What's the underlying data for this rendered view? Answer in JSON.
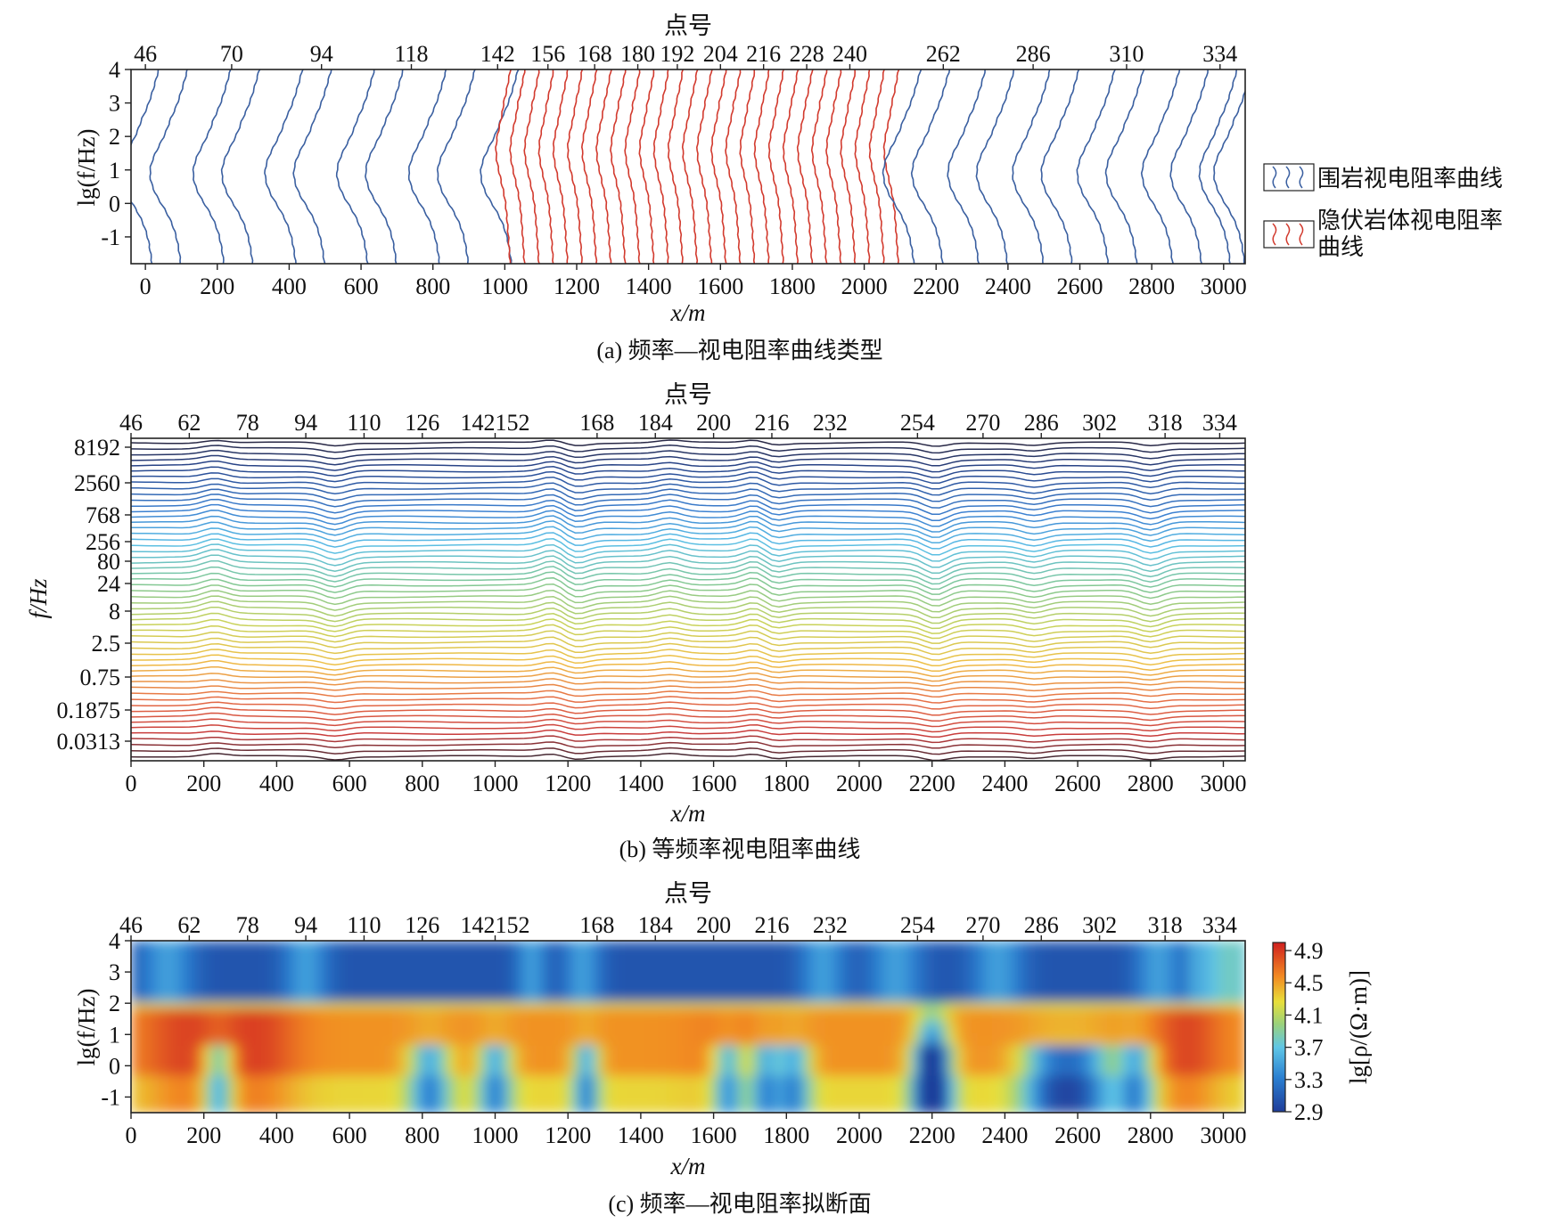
{
  "chart_data": [
    {
      "id": "a",
      "type": "line",
      "caption": "(a) 频率—视电阻率曲线类型",
      "top_axis_title": "点号",
      "top_ticks": [
        {
          "label": "46",
          "x": 0
        },
        {
          "label": "70",
          "x": 240
        },
        {
          "label": "94",
          "x": 490
        },
        {
          "label": "118",
          "x": 740
        },
        {
          "label": "142",
          "x": 980
        },
        {
          "label": "156",
          "x": 1120
        },
        {
          "label": "168",
          "x": 1250
        },
        {
          "label": "180",
          "x": 1370
        },
        {
          "label": "192",
          "x": 1480
        },
        {
          "label": "204",
          "x": 1600
        },
        {
          "label": "216",
          "x": 1720
        },
        {
          "label": "228",
          "x": 1840
        },
        {
          "label": "240",
          "x": 1960
        },
        {
          "label": "262",
          "x": 2220
        },
        {
          "label": "286",
          "x": 2470
        },
        {
          "label": "310",
          "x": 2730
        },
        {
          "label": "334",
          "x": 2990
        }
      ],
      "xlabel": "x/m",
      "ylabel": "lg(f/Hz)",
      "xlim": [
        -40,
        3060
      ],
      "ylim": [
        -1.8,
        4
      ],
      "xticks": [
        0,
        200,
        400,
        600,
        800,
        1000,
        1200,
        1400,
        1600,
        1800,
        2000,
        2200,
        2400,
        2600,
        2800,
        3000
      ],
      "yticks": [
        -1,
        0,
        1,
        2,
        3,
        4
      ],
      "series": [
        {
          "name": "围岩视电阻率曲线",
          "color": "#3a5fa0",
          "stations_x": [
            0,
            80,
            200,
            280,
            400,
            480,
            600,
            680,
            800,
            880,
            1000
          ]
        },
        {
          "name": "隐伏岩体视电阻率曲线",
          "color": "#d23a2e",
          "stations_x": [
            1000,
            1040,
            1080,
            1120,
            1160,
            1200,
            1240,
            1280,
            1320,
            1360,
            1400,
            1440,
            1480,
            1520,
            1560,
            1600,
            1640,
            1680,
            1720,
            1760,
            1800,
            1840,
            1880,
            1920,
            1960,
            2000,
            2040,
            2080
          ]
        },
        {
          "name": "围岩视电阻率曲线",
          "color": "#3a5fa0",
          "stations_x": [
            2120,
            2200,
            2300,
            2380,
            2480,
            2560,
            2660,
            2740,
            2840,
            2920,
            3000,
            3040
          ]
        }
      ],
      "legend": [
        {
          "label": "围岩视电阻率曲线",
          "color": "#3a5fa0"
        },
        {
          "label": "隐伏岩体视电阻率曲线",
          "color": "#d23a2e"
        }
      ]
    },
    {
      "id": "b",
      "type": "line",
      "caption": "(b) 等频率视电阻率曲线",
      "top_axis_title": "点号",
      "top_ticks": [
        {
          "label": "46",
          "x": 0
        },
        {
          "label": "62",
          "x": 160
        },
        {
          "label": "78",
          "x": 320
        },
        {
          "label": "94",
          "x": 480
        },
        {
          "label": "110",
          "x": 640
        },
        {
          "label": "126",
          "x": 800
        },
        {
          "label": "142152",
          "x": 1000
        },
        {
          "label": "168",
          "x": 1280
        },
        {
          "label": "184",
          "x": 1440
        },
        {
          "label": "200",
          "x": 1600
        },
        {
          "label": "216",
          "x": 1760
        },
        {
          "label": "232",
          "x": 1920
        },
        {
          "label": "254",
          "x": 2160
        },
        {
          "label": "270",
          "x": 2340
        },
        {
          "label": "286",
          "x": 2500
        },
        {
          "label": "302",
          "x": 2660
        },
        {
          "label": "318",
          "x": 2840
        },
        {
          "label": "334",
          "x": 2990
        }
      ],
      "xlabel": "x/m",
      "ylabel": "f/Hz",
      "xlim": [
        0,
        3060
      ],
      "xticks": [
        0,
        200,
        400,
        600,
        800,
        1000,
        1200,
        1400,
        1600,
        1800,
        2000,
        2200,
        2400,
        2600,
        2800,
        3000
      ],
      "yticks": [
        "8192",
        "2560",
        "768",
        "256",
        "80",
        "24",
        "8",
        "2.5",
        "0.75",
        "0.1875",
        "0.0313"
      ],
      "n_frequency_curves": 56
    },
    {
      "id": "c",
      "type": "heatmap",
      "caption": "(c) 频率—视电阻率拟断面",
      "top_axis_title": "点号",
      "top_ticks": [
        {
          "label": "46",
          "x": 0
        },
        {
          "label": "62",
          "x": 160
        },
        {
          "label": "78",
          "x": 320
        },
        {
          "label": "94",
          "x": 480
        },
        {
          "label": "110",
          "x": 640
        },
        {
          "label": "126",
          "x": 800
        },
        {
          "label": "142152",
          "x": 1000
        },
        {
          "label": "168",
          "x": 1280
        },
        {
          "label": "184",
          "x": 1440
        },
        {
          "label": "200",
          "x": 1600
        },
        {
          "label": "216",
          "x": 1760
        },
        {
          "label": "232",
          "x": 1920
        },
        {
          "label": "254",
          "x": 2160
        },
        {
          "label": "270",
          "x": 2340
        },
        {
          "label": "286",
          "x": 2500
        },
        {
          "label": "302",
          "x": 2660
        },
        {
          "label": "318",
          "x": 2840
        },
        {
          "label": "334",
          "x": 2990
        }
      ],
      "xlabel": "x/m",
      "ylabel": "lg(f/Hz)",
      "xlim": [
        0,
        3060
      ],
      "ylim": [
        -1.5,
        4
      ],
      "xticks": [
        0,
        200,
        400,
        600,
        800,
        1000,
        1200,
        1400,
        1600,
        1800,
        2000,
        2200,
        2400,
        2600,
        2800,
        3000
      ],
      "yticks": [
        -1,
        0,
        1,
        2,
        3,
        4
      ],
      "colorbar_label": "lg[ρ/(Ω·m)]",
      "colorbar_ticks": [
        "4.9",
        "4.5",
        "4.1",
        "3.7",
        "3.3",
        "2.9"
      ],
      "colorbar_range": [
        2.9,
        5.0
      ]
    }
  ]
}
